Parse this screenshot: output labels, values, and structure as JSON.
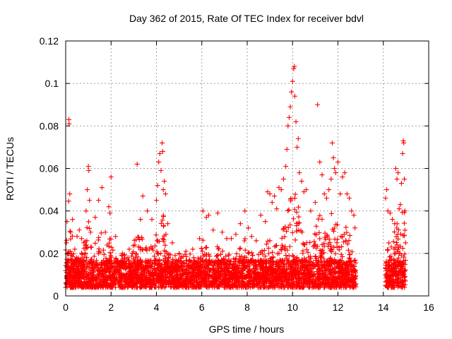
{
  "chart_data": {
    "type": "scatter",
    "title": "Day 362 of 2015, Rate Of TEC Index for receiver bdvl",
    "xlabel": "GPS time / hours",
    "ylabel": "ROTI / TECUs",
    "xlim": [
      0,
      16
    ],
    "ylim": [
      0,
      0.12
    ],
    "xticks": [
      0,
      2,
      4,
      6,
      8,
      10,
      12,
      14,
      16
    ],
    "xtick_labels": [
      "0",
      "2",
      "4",
      "6",
      "8",
      "10",
      "12",
      "14",
      "16"
    ],
    "yticks": [
      0,
      0.02,
      0.04,
      0.06,
      0.08,
      0.1,
      0.12
    ],
    "ytick_labels": [
      "0",
      "0.02",
      "0.04",
      "0.06",
      "0.08",
      "0.1",
      "0.12"
    ],
    "grid": true,
    "marker": "+",
    "marker_color": "#ff0000",
    "data_gap_hours": [
      12.8,
      14.1
    ],
    "series": [
      {
        "name": "ROTI",
        "points": [
          [
            0.0,
            0.012
          ],
          [
            0.03,
            0.025
          ],
          [
            0.06,
            0.035
          ],
          [
            0.1,
            0.02
          ],
          [
            0.14,
            0.083
          ],
          [
            0.15,
            0.081
          ],
          [
            0.18,
            0.048
          ],
          [
            0.22,
            0.03
          ],
          [
            0.3,
            0.036
          ],
          [
            0.4,
            0.022
          ],
          [
            0.5,
            0.028
          ],
          [
            0.6,
            0.031
          ],
          [
            0.7,
            0.027
          ],
          [
            0.8,
            0.025
          ],
          [
            0.9,
            0.04
          ],
          [
            0.95,
            0.05
          ],
          [
            1.0,
            0.061
          ],
          [
            1.02,
            0.059
          ],
          [
            1.05,
            0.045
          ],
          [
            1.1,
            0.03
          ],
          [
            1.3,
            0.037
          ],
          [
            1.45,
            0.045
          ],
          [
            1.6,
            0.051
          ],
          [
            1.75,
            0.03
          ],
          [
            1.9,
            0.042
          ],
          [
            1.95,
            0.039
          ],
          [
            2.0,
            0.056
          ],
          [
            2.2,
            0.028
          ],
          [
            2.5,
            0.02
          ],
          [
            2.8,
            0.022
          ],
          [
            3.05,
            0.024
          ],
          [
            3.15,
            0.062
          ],
          [
            3.3,
            0.036
          ],
          [
            3.4,
            0.047
          ],
          [
            3.6,
            0.04
          ],
          [
            3.8,
            0.036
          ],
          [
            4.0,
            0.045
          ],
          [
            4.05,
            0.052
          ],
          [
            4.1,
            0.063
          ],
          [
            4.15,
            0.067
          ],
          [
            4.2,
            0.059
          ],
          [
            4.25,
            0.072
          ],
          [
            4.28,
            0.068
          ],
          [
            4.3,
            0.05
          ],
          [
            4.35,
            0.054
          ],
          [
            4.4,
            0.048
          ],
          [
            4.5,
            0.034
          ],
          [
            4.7,
            0.025
          ],
          [
            5.0,
            0.02
          ],
          [
            5.3,
            0.021
          ],
          [
            5.6,
            0.022
          ],
          [
            5.9,
            0.027
          ],
          [
            6.05,
            0.04
          ],
          [
            6.2,
            0.037
          ],
          [
            6.3,
            0.038
          ],
          [
            6.5,
            0.031
          ],
          [
            6.7,
            0.039
          ],
          [
            6.9,
            0.03
          ],
          [
            7.1,
            0.027
          ],
          [
            7.3,
            0.027
          ],
          [
            7.5,
            0.029
          ],
          [
            7.7,
            0.034
          ],
          [
            7.9,
            0.04
          ],
          [
            8.05,
            0.032
          ],
          [
            8.2,
            0.028
          ],
          [
            8.4,
            0.026
          ],
          [
            8.6,
            0.038
          ],
          [
            8.8,
            0.035
          ],
          [
            8.9,
            0.049
          ],
          [
            9.0,
            0.048
          ],
          [
            9.1,
            0.044
          ],
          [
            9.2,
            0.047
          ],
          [
            9.3,
            0.041
          ],
          [
            9.4,
            0.051
          ],
          [
            9.5,
            0.05
          ],
          [
            9.6,
            0.055
          ],
          [
            9.7,
            0.061
          ],
          [
            9.75,
            0.069
          ],
          [
            9.8,
            0.08
          ],
          [
            9.85,
            0.084
          ],
          [
            9.9,
            0.089
          ],
          [
            9.95,
            0.096
          ],
          [
            10.0,
            0.101
          ],
          [
            10.05,
            0.107
          ],
          [
            10.08,
            0.108
          ],
          [
            10.1,
            0.094
          ],
          [
            10.15,
            0.082
          ],
          [
            10.2,
            0.07
          ],
          [
            10.25,
            0.074
          ],
          [
            10.3,
            0.058
          ],
          [
            10.4,
            0.054
          ],
          [
            10.5,
            0.049
          ],
          [
            10.6,
            0.05
          ],
          [
            10.8,
            0.04
          ],
          [
            11.0,
            0.044
          ],
          [
            11.1,
            0.09
          ],
          [
            11.2,
            0.063
          ],
          [
            11.3,
            0.057
          ],
          [
            11.4,
            0.048
          ],
          [
            11.5,
            0.046
          ],
          [
            11.6,
            0.05
          ],
          [
            11.7,
            0.055
          ],
          [
            11.75,
            0.072
          ],
          [
            11.8,
            0.065
          ],
          [
            11.85,
            0.06
          ],
          [
            11.9,
            0.058
          ],
          [
            12.0,
            0.063
          ],
          [
            12.1,
            0.048
          ],
          [
            12.2,
            0.056
          ],
          [
            12.3,
            0.058
          ],
          [
            12.4,
            0.048
          ],
          [
            12.5,
            0.046
          ],
          [
            12.6,
            0.04
          ],
          [
            12.7,
            0.038
          ],
          [
            12.75,
            0.032
          ],
          [
            14.1,
            0.046
          ],
          [
            14.15,
            0.05
          ],
          [
            14.2,
            0.04
          ],
          [
            14.3,
            0.039
          ],
          [
            14.4,
            0.036
          ],
          [
            14.5,
            0.034
          ],
          [
            14.55,
            0.06
          ],
          [
            14.6,
            0.055
          ],
          [
            14.65,
            0.058
          ],
          [
            14.7,
            0.041
          ],
          [
            14.75,
            0.043
          ],
          [
            14.8,
            0.053
          ],
          [
            14.85,
            0.067
          ],
          [
            14.88,
            0.073
          ],
          [
            14.9,
            0.072
          ],
          [
            14.93,
            0.055
          ],
          [
            14.95,
            0.04
          ],
          [
            14.98,
            0.025
          ],
          [
            0.2,
            0.013
          ],
          [
            0.4,
            0.009
          ],
          [
            0.6,
            0.011
          ],
          [
            0.8,
            0.014
          ],
          [
            1.2,
            0.012
          ],
          [
            1.4,
            0.01
          ],
          [
            1.8,
            0.011
          ],
          [
            2.4,
            0.009
          ],
          [
            2.7,
            0.01
          ],
          [
            3.0,
            0.011
          ],
          [
            3.5,
            0.012
          ],
          [
            3.9,
            0.013
          ],
          [
            4.6,
            0.011
          ],
          [
            5.2,
            0.01
          ],
          [
            5.5,
            0.009
          ],
          [
            5.8,
            0.011
          ],
          [
            6.4,
            0.012
          ],
          [
            6.8,
            0.01
          ],
          [
            7.2,
            0.011
          ],
          [
            7.6,
            0.012
          ],
          [
            8.0,
            0.01
          ],
          [
            8.3,
            0.008
          ],
          [
            8.7,
            0.011
          ],
          [
            9.25,
            0.013
          ],
          [
            9.65,
            0.014
          ],
          [
            10.35,
            0.013
          ],
          [
            10.7,
            0.012
          ],
          [
            11.05,
            0.015
          ],
          [
            11.45,
            0.014
          ],
          [
            11.95,
            0.016
          ],
          [
            12.35,
            0.015
          ],
          [
            12.65,
            0.012
          ],
          [
            14.25,
            0.012
          ],
          [
            14.45,
            0.01
          ],
          [
            14.7,
            0.011
          ],
          [
            14.9,
            0.01
          ]
        ]
      }
    ]
  }
}
